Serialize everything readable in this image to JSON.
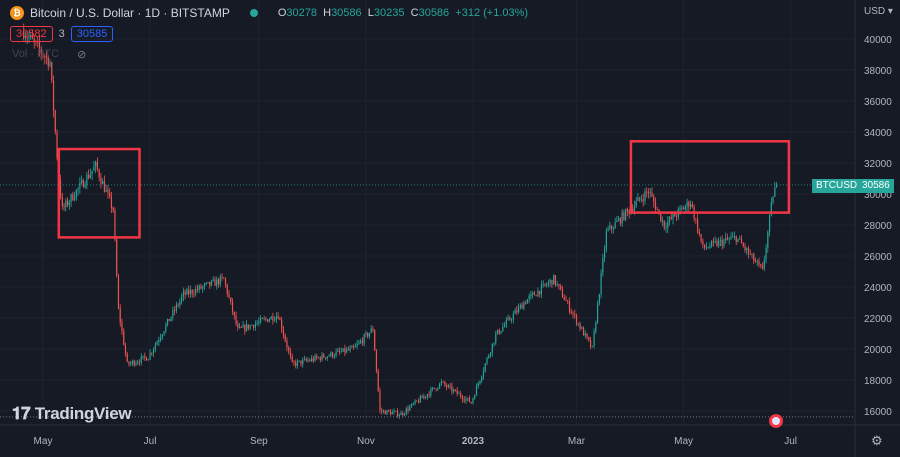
{
  "header": {
    "symbol_title": "Bitcoin / U.S. Dollar · 1D · BITSTAMP",
    "open_label": "O",
    "open": "30278",
    "high_label": "H",
    "high": "30586",
    "low_label": "L",
    "low": "30235",
    "close_label": "C",
    "close": "30586",
    "change": "+312 (+1.03%)",
    "sell_price": "30582",
    "spread": "3",
    "buy_price": "30585",
    "volume_label": "Vol · BTC",
    "currency": "USD"
  },
  "price_tag": {
    "symbol": "BTCUSD",
    "price": "30586"
  },
  "watermark": "TradingView",
  "colors": {
    "up": "#26a69a",
    "down": "#ef5350",
    "annotation_box": "#f23645",
    "background": "#161a25"
  },
  "chart_data": {
    "type": "candlestick",
    "y_ticks": [
      16000,
      18000,
      20000,
      22000,
      24000,
      26000,
      28000,
      30000,
      32000,
      34000,
      36000,
      38000,
      40000
    ],
    "ylim": [
      15500,
      41000
    ],
    "x_ticks": [
      {
        "label": "May",
        "date": "2022-05-01"
      },
      {
        "label": "Jul",
        "date": "2022-07-01"
      },
      {
        "label": "Sep",
        "date": "2022-09-01"
      },
      {
        "label": "Nov",
        "date": "2022-11-01"
      },
      {
        "label": "2023",
        "date": "2023-01-01"
      },
      {
        "label": "Mar",
        "date": "2023-03-01"
      },
      {
        "label": "May",
        "date": "2023-05-01"
      },
      {
        "label": "Jul",
        "date": "2023-07-01"
      }
    ],
    "approx_close_path": [
      [
        "2022-04-20",
        40500
      ],
      [
        "2022-05-05",
        38500
      ],
      [
        "2022-05-10",
        31000
      ],
      [
        "2022-05-12",
        29000
      ],
      [
        "2022-05-31",
        31800
      ],
      [
        "2022-06-10",
        29000
      ],
      [
        "2022-06-13",
        22500
      ],
      [
        "2022-06-18",
        19000
      ],
      [
        "2022-06-30",
        19500
      ],
      [
        "2022-07-20",
        23500
      ],
      [
        "2022-08-12",
        24500
      ],
      [
        "2022-08-20",
        21200
      ],
      [
        "2022-09-12",
        22200
      ],
      [
        "2022-09-20",
        19000
      ],
      [
        "2022-10-25",
        20000
      ],
      [
        "2022-11-05",
        21300
      ],
      [
        "2022-11-09",
        16000
      ],
      [
        "2022-11-21",
        15800
      ],
      [
        "2022-12-14",
        17800
      ],
      [
        "2022-12-31",
        16550
      ],
      [
        "2023-01-14",
        20900
      ],
      [
        "2023-01-31",
        23100
      ],
      [
        "2023-02-16",
        24500
      ],
      [
        "2023-03-10",
        20000
      ],
      [
        "2023-03-18",
        27500
      ],
      [
        "2023-04-11",
        30200
      ],
      [
        "2023-04-20",
        28000
      ],
      [
        "2023-05-05",
        29500
      ],
      [
        "2023-05-12",
        26500
      ],
      [
        "2023-05-31",
        27200
      ],
      [
        "2023-06-15",
        25000
      ],
      [
        "2023-06-21",
        30000
      ],
      [
        "2023-06-23",
        30586
      ]
    ],
    "last_price": 30586,
    "annotations": [
      {
        "type": "rectangle",
        "from": "2022-05-10",
        "to": "2022-06-25",
        "price_range": [
          27200,
          32900
        ]
      },
      {
        "type": "rectangle",
        "from": "2023-04-01",
        "to": "2023-06-30",
        "price_range": [
          28800,
          33400
        ]
      }
    ]
  }
}
